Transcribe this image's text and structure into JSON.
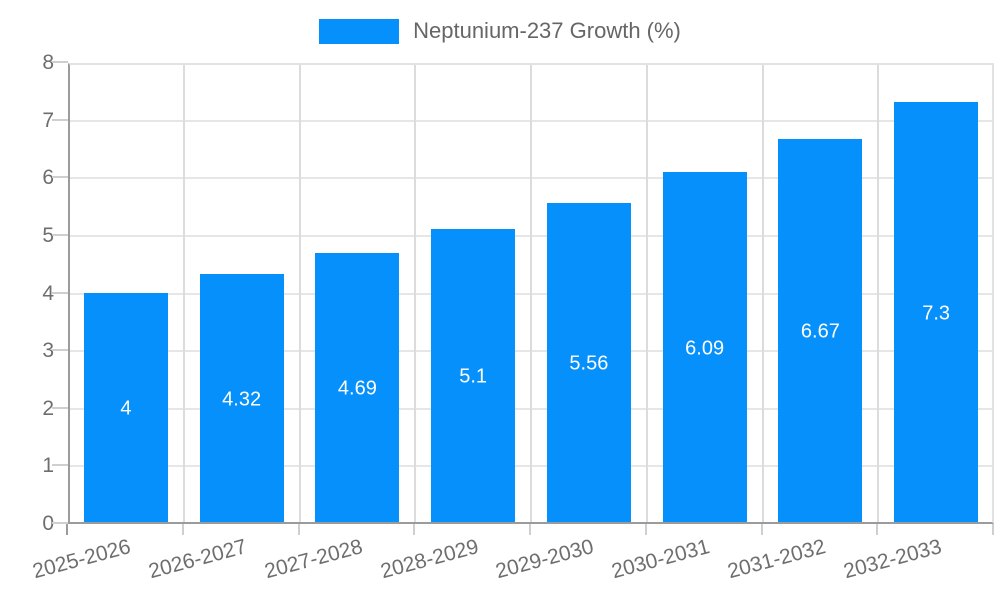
{
  "legend": {
    "label": "Neptunium-237 Growth (%)",
    "swatch_color": "#0590fb"
  },
  "colors": {
    "background": "#ffffff",
    "bar": "#0590fb",
    "grid_horizontal": "#e6e6e6",
    "grid_vertical": "#dcdcdc",
    "axis_line": "#9b9b9b",
    "plot_border": "#e2e2e2",
    "tick_mark": "#cfcfcf",
    "axis_tick_label": "#6e6e6e",
    "legend_text": "#666666",
    "value_label": "#ffffff"
  },
  "chart_data": {
    "type": "bar",
    "title": "Neptunium-237 Growth (%)",
    "xlabel": "",
    "ylabel": "",
    "categories": [
      "2025-2026",
      "2026-2027",
      "2027-2028",
      "2028-2029",
      "2029-2030",
      "2030-2031",
      "2031-2032",
      "2032-2033"
    ],
    "series": [
      {
        "name": "Neptunium-237 Growth (%)",
        "values": [
          4,
          4.32,
          4.69,
          5.1,
          5.56,
          6.09,
          6.67,
          7.3
        ],
        "value_labels": [
          "4",
          "4.32",
          "4.69",
          "5.1",
          "5.56",
          "6.09",
          "6.67",
          "7.3"
        ]
      }
    ],
    "ylim": [
      0,
      8
    ],
    "y_ticks": [
      0,
      1,
      2,
      3,
      4,
      5,
      6,
      7,
      8
    ],
    "grid": "on",
    "legend_position": "top",
    "value_labels_position": "center-inside",
    "x_label_rotation_deg": -15
  }
}
